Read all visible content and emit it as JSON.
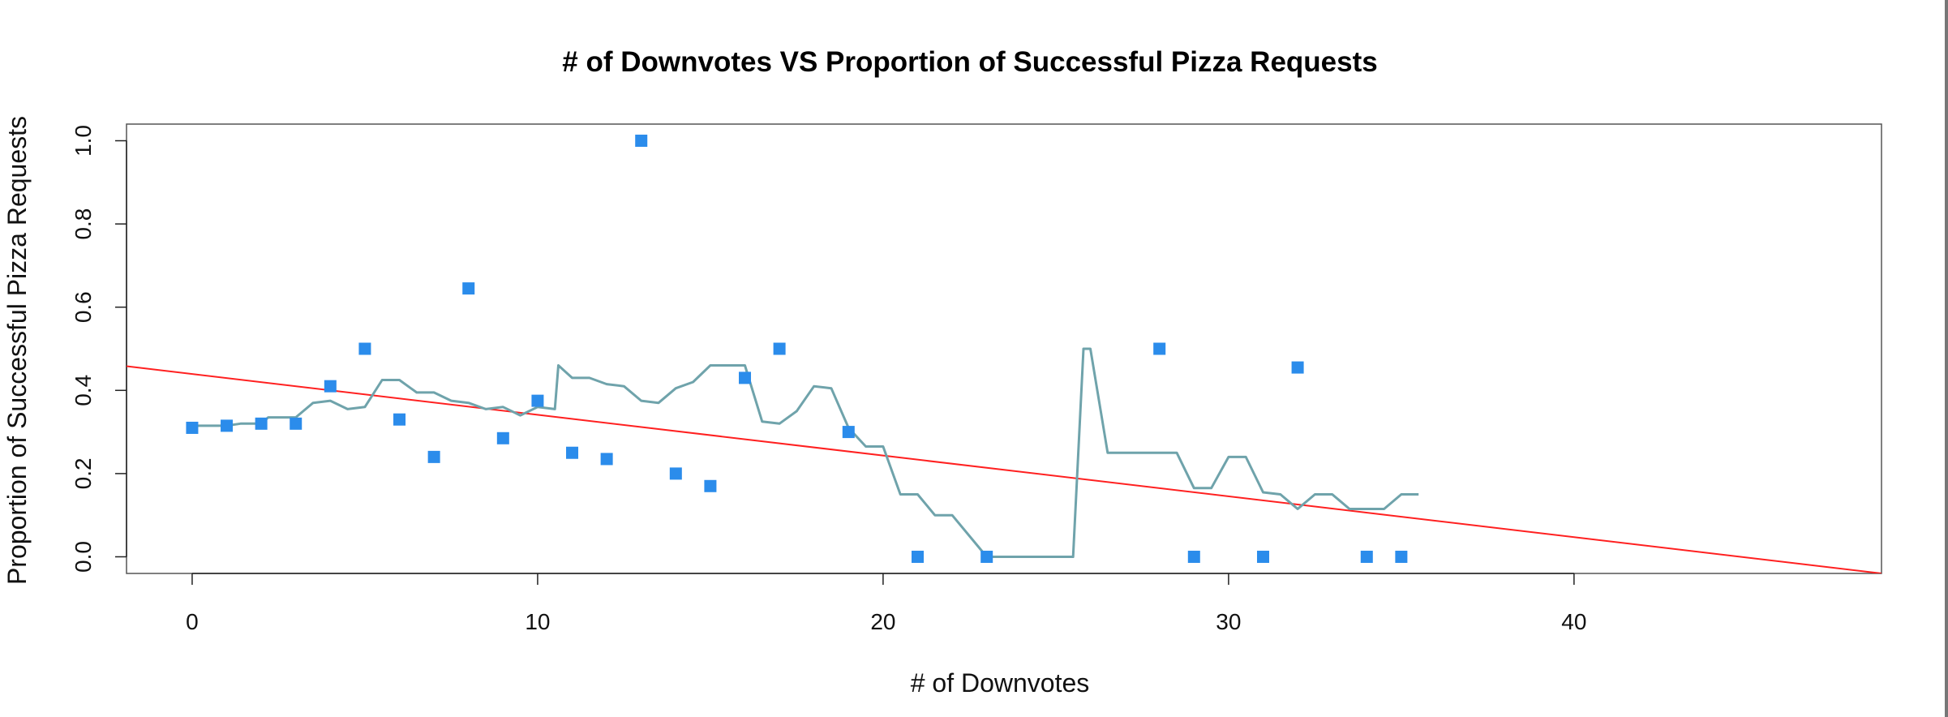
{
  "chart_data": {
    "type": "scatter",
    "title": "# of Downvotes VS Proportion of Successful Pizza Requests",
    "xlabel": "# of Downvotes",
    "ylabel": "Proportion of Successful Pizza Requests",
    "xlim": [
      -1.9,
      48.9
    ],
    "ylim": [
      -0.04,
      1.04
    ],
    "xticks": [
      0,
      10,
      20,
      30,
      40
    ],
    "xtick_labels": [
      "0",
      "10",
      "20",
      "30",
      "40"
    ],
    "yticks": [
      0.0,
      0.2,
      0.4,
      0.6,
      0.8,
      1.0
    ],
    "ytick_labels": [
      "0.0",
      "0.2",
      "0.4",
      "0.6",
      "0.8",
      "1.0"
    ],
    "grid": false,
    "points": {
      "color": "#2B8CEB",
      "x": [
        0,
        1,
        2,
        3,
        4,
        5,
        6,
        7,
        8,
        9,
        10,
        11,
        12,
        13,
        14,
        15,
        16,
        17,
        19,
        21,
        23,
        28,
        29,
        31,
        32,
        34,
        35
      ],
      "y": [
        0.31,
        0.315,
        0.32,
        0.32,
        0.41,
        0.5,
        0.33,
        0.24,
        0.645,
        0.285,
        0.375,
        0.25,
        0.235,
        1.0,
        0.2,
        0.17,
        0.43,
        0.5,
        0.3,
        0.0,
        0.0,
        0.5,
        0.0,
        0.0,
        0.455,
        0.0,
        0.0
      ]
    },
    "smooth_line": {
      "color": "#6FA3AB",
      "x": [
        0,
        1,
        1.4,
        2,
        2.2,
        2.6,
        3,
        3.5,
        4,
        4.5,
        5,
        5.5,
        6,
        6.5,
        7,
        7.5,
        8,
        8.5,
        9,
        9.5,
        10,
        10.5,
        10.6,
        11,
        11.5,
        12,
        12.5,
        13,
        13.5,
        14,
        14.5,
        15,
        15.5,
        16,
        16.5,
        17,
        17.5,
        18,
        18.5,
        19,
        19.5,
        20,
        20.5,
        21,
        21.5,
        22,
        23,
        24,
        25,
        25.5,
        25.8,
        26,
        26.5,
        27,
        27.5,
        28,
        28.5,
        29,
        29.5,
        30,
        30.5,
        31,
        31.5,
        32,
        32.5,
        33,
        33.5,
        34,
        34.5,
        35,
        35.5
      ],
      "y": [
        0.315,
        0.315,
        0.32,
        0.32,
        0.335,
        0.335,
        0.335,
        0.37,
        0.375,
        0.355,
        0.36,
        0.425,
        0.425,
        0.395,
        0.395,
        0.375,
        0.37,
        0.355,
        0.36,
        0.34,
        0.36,
        0.355,
        0.46,
        0.43,
        0.43,
        0.415,
        0.41,
        0.375,
        0.37,
        0.405,
        0.42,
        0.46,
        0.46,
        0.46,
        0.325,
        0.32,
        0.35,
        0.41,
        0.405,
        0.31,
        0.265,
        0.265,
        0.15,
        0.15,
        0.1,
        0.1,
        0.0,
        0.0,
        0.0,
        0.0,
        0.5,
        0.5,
        0.25,
        0.25,
        0.25,
        0.25,
        0.25,
        0.165,
        0.165,
        0.24,
        0.24,
        0.155,
        0.15,
        0.115,
        0.15,
        0.15,
        0.115,
        0.115,
        0.115,
        0.15,
        0.15
      ]
    },
    "regression_line": {
      "color": "#FF2020",
      "x": [
        -1.9,
        48.9
      ],
      "y": [
        0.458,
        -0.04
      ]
    }
  }
}
